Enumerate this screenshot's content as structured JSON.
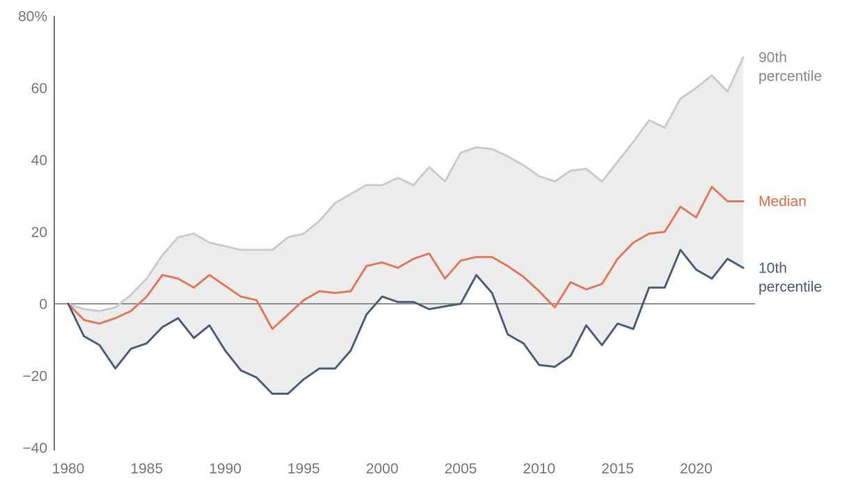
{
  "chart_data": {
    "type": "line",
    "title": "",
    "subtitle": "",
    "xlabel": "",
    "ylabel": "",
    "xlim": [
      1980,
      2023
    ],
    "ylim": [
      -40,
      80
    ],
    "grid": "zero-line-only",
    "legend_position": "right-of-line-ends",
    "x": [
      1980,
      1981,
      1982,
      1983,
      1984,
      1985,
      1986,
      1987,
      1988,
      1989,
      1990,
      1991,
      1992,
      1993,
      1994,
      1995,
      1996,
      1997,
      1998,
      1999,
      2000,
      2001,
      2002,
      2003,
      2004,
      2005,
      2006,
      2007,
      2008,
      2009,
      2010,
      2011,
      2012,
      2013,
      2014,
      2015,
      2016,
      2017,
      2018,
      2019,
      2020,
      2021,
      2022,
      2023
    ],
    "series": [
      {
        "name": "90th percentile",
        "label_lines": [
          "90th",
          "percentile"
        ],
        "color": "#cbcbcb",
        "label_color": "#87898c",
        "values": [
          0,
          -1.5,
          -2,
          -1,
          2.5,
          7,
          13.5,
          18.5,
          19.5,
          17,
          16,
          15,
          15,
          15,
          18.5,
          19.5,
          23,
          28,
          30.5,
          33,
          33,
          35,
          33,
          38,
          34,
          42,
          43.5,
          43,
          41,
          38.5,
          35.5,
          34,
          37,
          37.5,
          34,
          39.5,
          45,
          51,
          49,
          57,
          60,
          63.5,
          59,
          68.5
        ]
      },
      {
        "name": "Median",
        "label_lines": [
          "Median"
        ],
        "color": "#e17a5c",
        "label_color": "#dc6e4a",
        "values": [
          0,
          -4.5,
          -5.5,
          -4,
          -2,
          2,
          8,
          7,
          4.5,
          8,
          5,
          2,
          1,
          -7,
          -3,
          1,
          3.5,
          3,
          3.5,
          10.5,
          11.5,
          10,
          12.5,
          14,
          7,
          12,
          13,
          13,
          10.5,
          7.5,
          3.5,
          -1,
          6,
          4,
          5.5,
          12.5,
          17,
          19.5,
          20,
          27,
          24,
          32.5,
          28.5,
          28.5
        ]
      },
      {
        "name": "10th percentile",
        "label_lines": [
          "10th",
          "percentile"
        ],
        "color": "#4f5e7b",
        "label_color": "#4d5c76",
        "values": [
          0,
          -9,
          -11.5,
          -18,
          -12.5,
          -11,
          -6.5,
          -4,
          -9.5,
          -6,
          -13,
          -18.5,
          -20.5,
          -25,
          -25,
          -21,
          -18,
          -18,
          -13,
          -3,
          2,
          0.5,
          0.5,
          -1.5,
          -0.7,
          0,
          8,
          3,
          -8.5,
          -11,
          -17,
          -17.5,
          -14.5,
          -6,
          -11.5,
          -5.5,
          -7,
          4.5,
          4.5,
          15,
          9.5,
          7,
          12.5,
          10
        ]
      }
    ],
    "band": {
      "upper": "90th percentile",
      "lower": "10th percentile",
      "fill": "#ededed"
    },
    "y_ticks": {
      "values": [
        80,
        60,
        40,
        20,
        0,
        -20,
        -40
      ],
      "labels": [
        "80%",
        "60",
        "40",
        "20",
        "0",
        "−20",
        "−40"
      ]
    },
    "x_ticks": {
      "values": [
        1980,
        1985,
        1990,
        1995,
        2000,
        2005,
        2010,
        2015,
        2020
      ],
      "labels": [
        "1980",
        "1985",
        "1990",
        "1995",
        "2000",
        "2005",
        "2010",
        "2015",
        "2020"
      ]
    },
    "colors": {
      "axis_line": "#6f7276",
      "zero_line": "#6f7276",
      "tick_text": "#75787b",
      "background": "#ffffff"
    }
  }
}
